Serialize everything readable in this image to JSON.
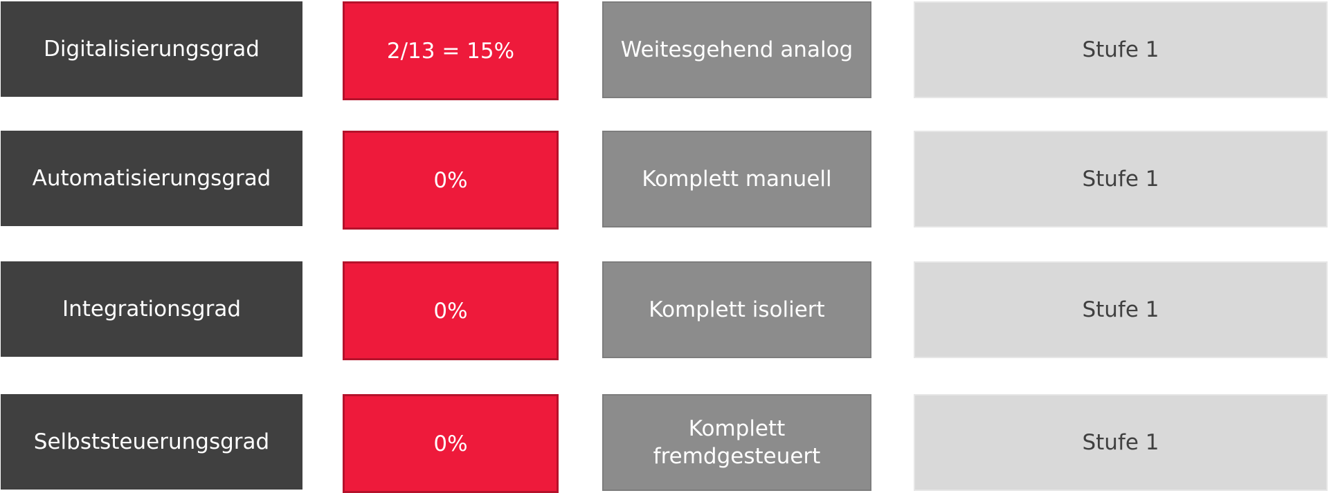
{
  "rows": [
    {
      "label": "Digitalisierungsgrad",
      "value": "2/13 = 15%",
      "description": "Weitesgehend analog",
      "level": "Stufe 1"
    },
    {
      "label": "Automatisierungsgrad",
      "value": "0%",
      "description": "Komplett manuell",
      "level": "Stufe 1"
    },
    {
      "label": "Integrationsgrad",
      "value": "0%",
      "description": "Komplett isoliert",
      "level": "Stufe 1"
    },
    {
      "label": "Selbststeuerungsgrad",
      "value": "0%",
      "description": "Komplett fremdgesteuert",
      "level": "Stufe 1"
    }
  ],
  "colors": {
    "label_bg": "#404040",
    "value_bg": "#ee1a3b",
    "value_border": "#b5122b",
    "description_bg": "#8c8c8c",
    "level_bg": "#d9d9d9",
    "level_text": "#404040"
  }
}
